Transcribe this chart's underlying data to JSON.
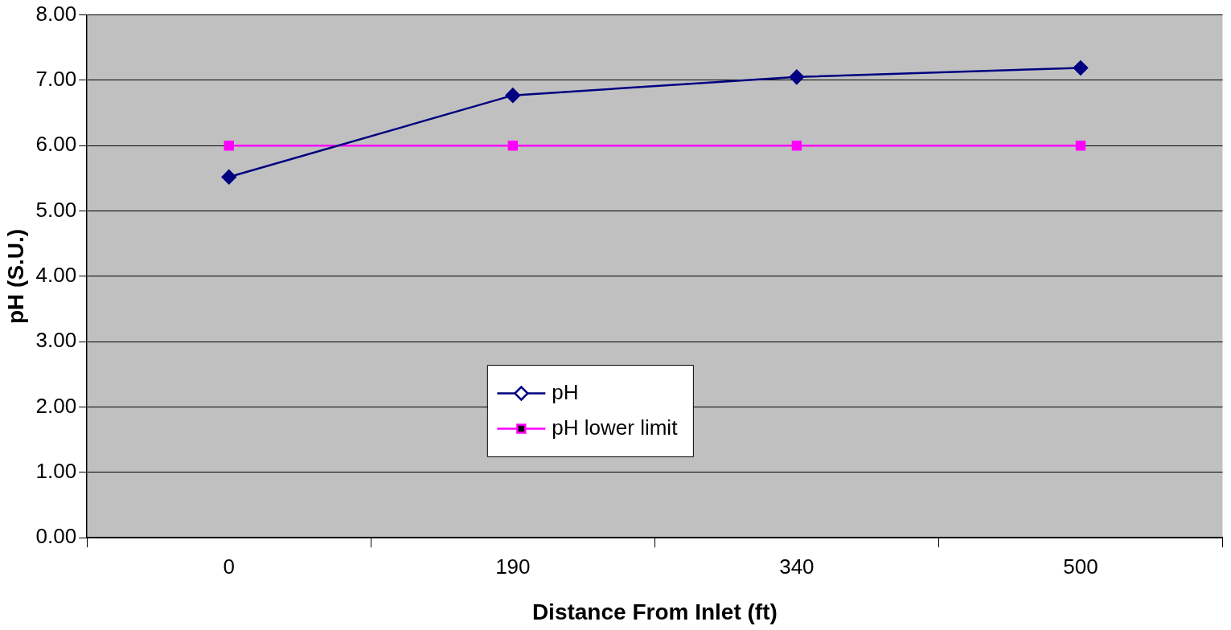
{
  "chart_data": {
    "type": "line",
    "xlabel": "Distance From Inlet (ft)",
    "ylabel": "pH (S.U.)",
    "categories": [
      "0",
      "190",
      "340",
      "500"
    ],
    "series": [
      {
        "name": "pH",
        "color": "#000080",
        "values": [
          5.52,
          6.77,
          7.05,
          7.19
        ],
        "marker": "diamond"
      },
      {
        "name": "pH lower limit",
        "color": "#ff00ff",
        "values": [
          6.0,
          6.0,
          6.0,
          6.0
        ],
        "marker": "square"
      }
    ],
    "ylim": [
      0,
      8
    ],
    "yticks": [
      {
        "value": 0,
        "label": "0.00"
      },
      {
        "value": 1,
        "label": "1.00"
      },
      {
        "value": 2,
        "label": "2.00"
      },
      {
        "value": 3,
        "label": "3.00"
      },
      {
        "value": 4,
        "label": "4.00"
      },
      {
        "value": 5,
        "label": "5.00"
      },
      {
        "value": 6,
        "label": "6.00"
      },
      {
        "value": 7,
        "label": "7.00"
      },
      {
        "value": 8,
        "label": "8.00"
      }
    ],
    "grid": "y",
    "legend": "bottom",
    "line_style": "solid"
  }
}
